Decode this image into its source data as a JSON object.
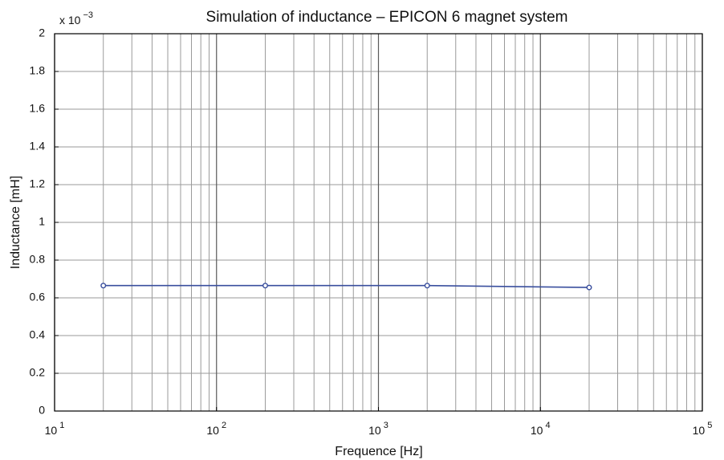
{
  "chart_data": {
    "type": "line",
    "title": "Simulation of inductance – EPICON 6 magnet system",
    "x_label": "Frequence [Hz]",
    "y_label": "Inductance [mH]",
    "y_multiplier": "x 10^−3",
    "x": [
      20,
      200,
      2000,
      20000
    ],
    "series": [
      {
        "name": "Inductance",
        "color": "#3a4f9e",
        "values": [
          0.665,
          0.665,
          0.665,
          0.655
        ]
      }
    ],
    "xlog": true,
    "xlim": [
      10,
      100000
    ],
    "xticks": [
      {
        "value": 10,
        "label": "10^1"
      },
      {
        "value": 100,
        "label": "10^2"
      },
      {
        "value": 1000,
        "label": "10^3"
      },
      {
        "value": 10000,
        "label": "10^4"
      },
      {
        "value": 100000,
        "label": "10^5"
      }
    ],
    "ylim": [
      0,
      2
    ],
    "yticks": [
      0,
      0.2,
      0.4,
      0.6,
      0.8,
      1,
      1.2,
      1.4,
      1.6,
      1.8,
      2
    ],
    "grid": true,
    "minor_grid": true
  }
}
